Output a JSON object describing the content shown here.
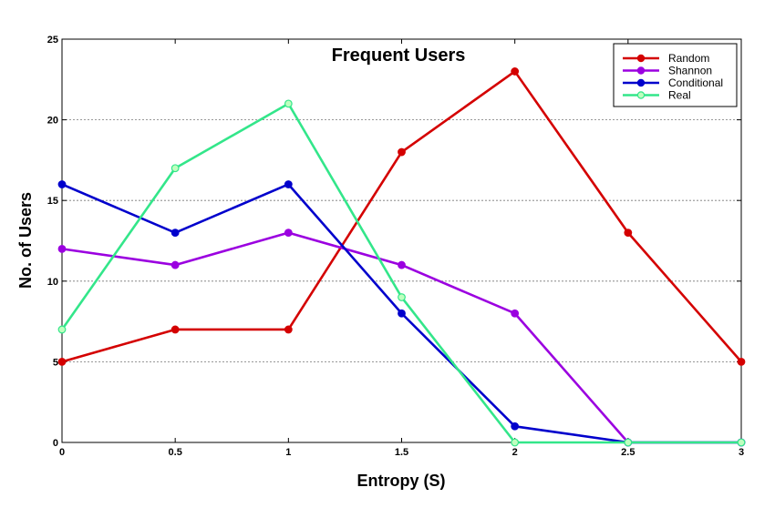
{
  "chart_data": {
    "type": "line",
    "title": "Frequent Users",
    "xlabel": "Entropy (S)",
    "ylabel": "No. of Users",
    "x": [
      0,
      0.5,
      1,
      1.5,
      2,
      2.5,
      3
    ],
    "xticks": [
      "0",
      "0.5",
      "1",
      "1.5",
      "2",
      "2.5",
      "3"
    ],
    "yticks": [
      "0",
      "5",
      "10",
      "15",
      "20",
      "25"
    ],
    "xlim": [
      0,
      3
    ],
    "ylim": [
      0,
      25
    ],
    "grid": "horizontal dotted",
    "legend_position": "top-right",
    "series": [
      {
        "name": "Random",
        "color": "#d40000",
        "marker_fill": "#d40000",
        "values": [
          5,
          7,
          7,
          18,
          23,
          13,
          5
        ]
      },
      {
        "name": "Shannon",
        "color": "#9b00e0",
        "marker_fill": "#9b00e0",
        "values": [
          12,
          11,
          13,
          11,
          8,
          0,
          0
        ]
      },
      {
        "name": "Conditional",
        "color": "#0000cc",
        "marker_fill": "#0000cc",
        "values": [
          16,
          13,
          16,
          8,
          1,
          0,
          0
        ]
      },
      {
        "name": "Real",
        "color": "#33e68a",
        "marker_fill": "#bfffbf",
        "values": [
          7,
          17,
          21,
          9,
          0,
          0,
          0
        ]
      }
    ]
  }
}
